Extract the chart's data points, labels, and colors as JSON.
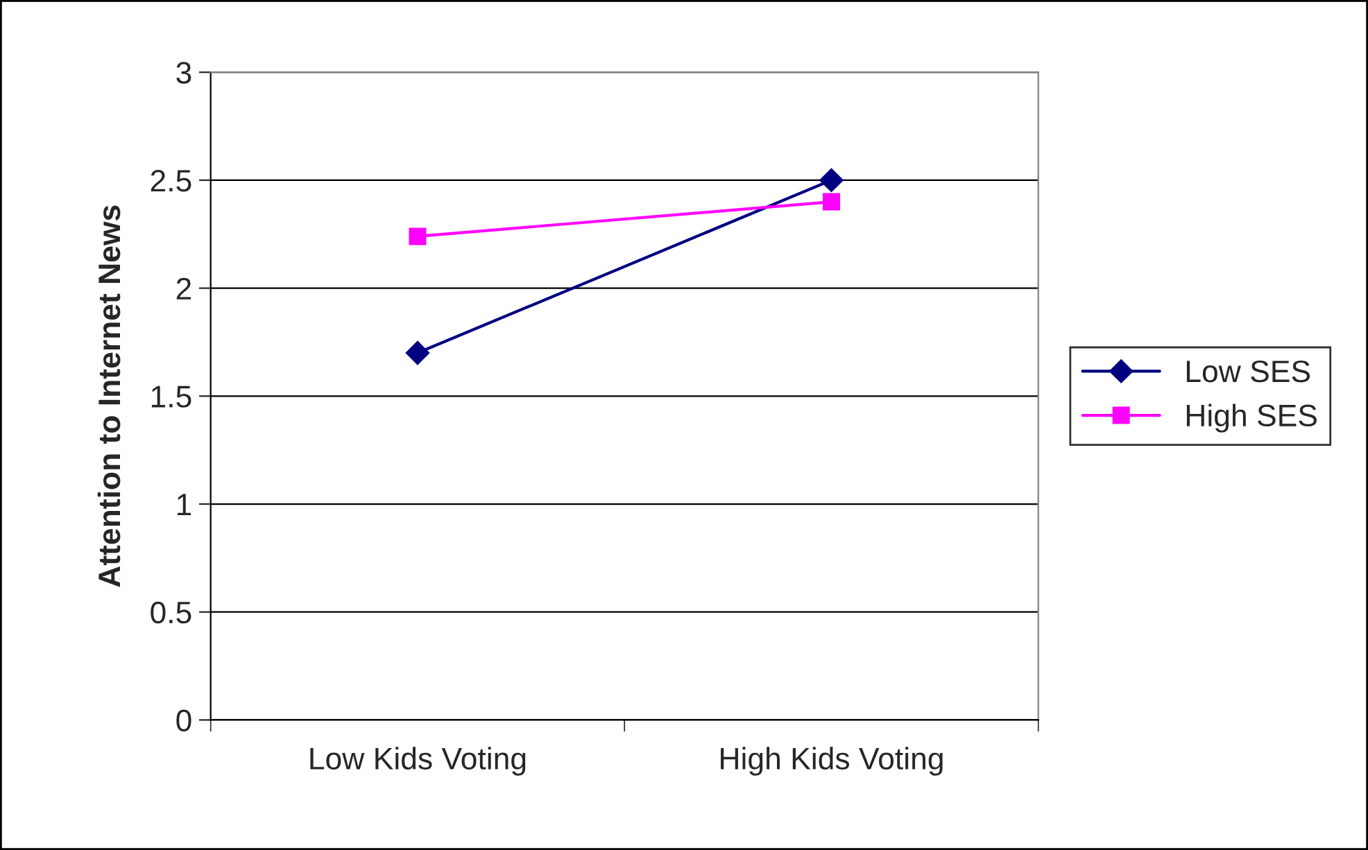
{
  "chart_data": {
    "type": "line",
    "ylabel": "Attention to Internet News",
    "categories": [
      "Low Kids Voting",
      "High Kids Voting"
    ],
    "series": [
      {
        "name": "Low SES",
        "color": "#000080",
        "values": [
          1.7,
          2.5
        ],
        "marker": "diamond"
      },
      {
        "name": "High SES",
        "color": "#ff00ff",
        "values": [
          2.24,
          2.4
        ],
        "marker": "square"
      }
    ],
    "ylim": [
      0,
      3
    ],
    "yticks": [
      0,
      0.5,
      1,
      1.5,
      2,
      2.5,
      3
    ],
    "grid": "y",
    "legend": "right"
  }
}
